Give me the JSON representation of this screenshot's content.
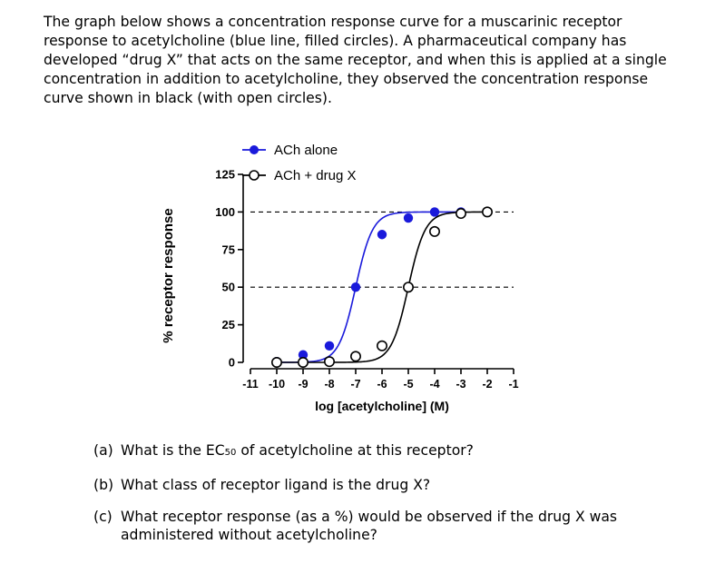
{
  "intro_text": "The graph below shows a concentration response curve for a muscarinic receptor response to acetylcholine (blue line, filled circles). A pharmaceutical company has developed “drug X” that acts on the same receptor, and when this is applied at a single concentration in addition to acetylcholine, they observed the concentration response curve shown in black (with open circles).",
  "questions": [
    {
      "label": "(a)",
      "text_before": "What is the EC",
      "sub": "50",
      "text_after": " of acetylcholine at this receptor?"
    },
    {
      "label": "(b)",
      "text": "What class of receptor ligand is the drug X?"
    },
    {
      "label": "(c)",
      "text": "What receptor response (as a %) would be observed if the drug X was administered without acetylcholine?"
    }
  ],
  "colors": {
    "ach": "#1a1adb",
    "drug": "#000000",
    "dashed": "#000000"
  },
  "chart_data": {
    "type": "line",
    "title": "",
    "xlabel": "log [acetylcholine] (M)",
    "ylabel": "% receptor response",
    "xlim": [
      -11,
      -1
    ],
    "ylim": [
      0,
      125
    ],
    "xticks": [
      -11,
      -10,
      -9,
      -8,
      -7,
      -6,
      -5,
      -4,
      -3,
      -2,
      -1
    ],
    "xtick_labels": [
      "-11",
      "-10",
      "-9",
      "-8",
      "-7",
      "-6",
      "-5",
      "-4",
      "-3",
      "-2",
      "-1"
    ],
    "yticks": [
      0,
      25,
      50,
      75,
      100,
      125
    ],
    "ytick_labels": [
      "0",
      "25",
      "50",
      "75",
      "100",
      "125"
    ],
    "reference_lines": [
      50,
      100
    ],
    "legend_position": "top",
    "series": [
      {
        "name": "ACh alone",
        "marker": "filled-circle",
        "ec50_log": -7,
        "top": 100,
        "x": [
          -10,
          -9,
          -8,
          -7,
          -6,
          -5,
          -4,
          -3
        ],
        "y": [
          0.5,
          5,
          11,
          50,
          85,
          96,
          100,
          100
        ]
      },
      {
        "name": "ACh + drug X",
        "marker": "open-circle",
        "ec50_log": -5,
        "top": 100,
        "x": [
          -10,
          -9,
          -8,
          -7,
          -6,
          -5,
          -4,
          -3,
          -2
        ],
        "y": [
          0,
          0,
          0.5,
          4,
          11,
          50,
          87,
          99,
          100
        ]
      }
    ]
  }
}
